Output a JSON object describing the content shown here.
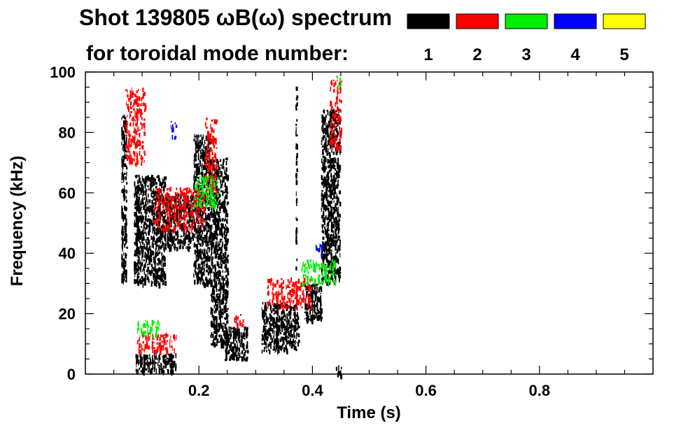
{
  "chart_data": {
    "type": "heatmap",
    "title": "Shot 139805 ωB(ω) spectrum",
    "legend_caption": "for toroidal mode number:",
    "xlabel": "Time (s)",
    "ylabel": "Frequency (kHz)",
    "xlim": [
      0.0,
      1.0
    ],
    "ylim": [
      0,
      100
    ],
    "x_ticks": [
      {
        "value": 0.2,
        "label": "0.2"
      },
      {
        "value": 0.4,
        "label": "0.4"
      },
      {
        "value": 0.6,
        "label": "0.6"
      },
      {
        "value": 0.8,
        "label": "0.8"
      }
    ],
    "y_ticks": [
      {
        "value": 0,
        "label": "0"
      },
      {
        "value": 20,
        "label": "20"
      },
      {
        "value": 40,
        "label": "40"
      },
      {
        "value": 60,
        "label": "60"
      },
      {
        "value": 80,
        "label": "80"
      },
      {
        "value": 100,
        "label": "100"
      }
    ],
    "legend": [
      {
        "label": "1",
        "color": "#000000"
      },
      {
        "label": "2",
        "color": "#ff0000"
      },
      {
        "label": "3",
        "color": "#00ee00"
      },
      {
        "label": "4",
        "color": "#0000ff"
      },
      {
        "label": "5",
        "color": "#ffff00"
      }
    ],
    "regions": [
      {
        "mode": 1,
        "t": [
          0.063,
          0.072
        ],
        "f": [
          30,
          86
        ]
      },
      {
        "mode": 1,
        "t": [
          0.085,
          0.14
        ],
        "f": [
          30,
          66
        ]
      },
      {
        "mode": 1,
        "t": [
          0.14,
          0.19
        ],
        "f": [
          42,
          60
        ]
      },
      {
        "mode": 1,
        "t": [
          0.088,
          0.16
        ],
        "f": [
          1,
          7
        ]
      },
      {
        "mode": 1,
        "t": [
          0.19,
          0.22
        ],
        "f": [
          30,
          80
        ]
      },
      {
        "mode": 1,
        "t": [
          0.22,
          0.25
        ],
        "f": [
          10,
          72
        ]
      },
      {
        "mode": 1,
        "t": [
          0.245,
          0.285
        ],
        "f": [
          5,
          16
        ]
      },
      {
        "mode": 1,
        "t": [
          0.31,
          0.375
        ],
        "f": [
          8,
          24
        ]
      },
      {
        "mode": 1,
        "t": [
          0.37,
          0.372
        ],
        "f": [
          35,
          98
        ]
      },
      {
        "mode": 1,
        "t": [
          0.385,
          0.415
        ],
        "f": [
          18,
          30
        ]
      },
      {
        "mode": 1,
        "t": [
          0.415,
          0.448
        ],
        "f": [
          30,
          88
        ]
      },
      {
        "mode": 1,
        "t": [
          0.44,
          0.45
        ],
        "f": [
          0,
          3
        ]
      },
      {
        "mode": 2,
        "t": [
          0.07,
          0.105
        ],
        "f": [
          70,
          95
        ]
      },
      {
        "mode": 2,
        "t": [
          0.09,
          0.16
        ],
        "f": [
          8,
          14
        ]
      },
      {
        "mode": 2,
        "t": [
          0.12,
          0.21
        ],
        "f": [
          48,
          62
        ]
      },
      {
        "mode": 2,
        "t": [
          0.21,
          0.23
        ],
        "f": [
          60,
          85
        ]
      },
      {
        "mode": 2,
        "t": [
          0.26,
          0.28
        ],
        "f": [
          16,
          20
        ]
      },
      {
        "mode": 2,
        "t": [
          0.32,
          0.4
        ],
        "f": [
          22,
          32
        ]
      },
      {
        "mode": 2,
        "t": [
          0.43,
          0.45
        ],
        "f": [
          75,
          98
        ]
      },
      {
        "mode": 3,
        "t": [
          0.19,
          0.235
        ],
        "f": [
          56,
          66
        ]
      },
      {
        "mode": 3,
        "t": [
          0.09,
          0.13
        ],
        "f": [
          13,
          18
        ]
      },
      {
        "mode": 3,
        "t": [
          0.38,
          0.44
        ],
        "f": [
          30,
          38
        ]
      },
      {
        "mode": 3,
        "t": [
          0.44,
          0.45
        ],
        "f": [
          95,
          99
        ]
      },
      {
        "mode": 4,
        "t": [
          0.15,
          0.16
        ],
        "f": [
          78,
          84
        ]
      },
      {
        "mode": 4,
        "t": [
          0.405,
          0.42
        ],
        "f": [
          40,
          44
        ]
      }
    ]
  }
}
